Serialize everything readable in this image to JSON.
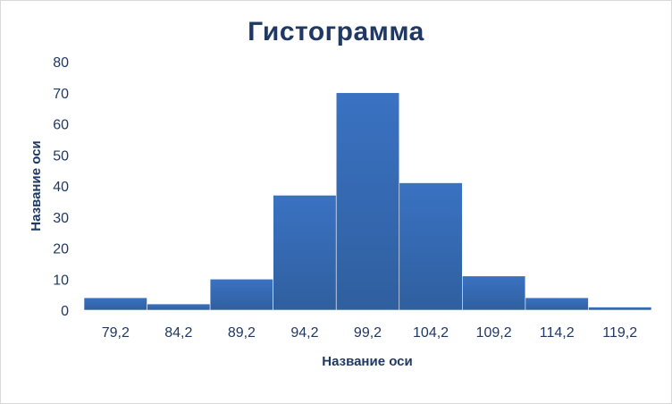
{
  "chart_data": {
    "type": "bar",
    "title": "Гистограмма",
    "xlabel": "Название оси",
    "ylabel": "Название оси",
    "categories": [
      "79,2",
      "84,2",
      "89,2",
      "94,2",
      "99,2",
      "104,2",
      "109,2",
      "114,2",
      "119,2"
    ],
    "values": [
      4,
      2,
      10,
      37,
      70,
      41,
      11,
      4,
      1
    ],
    "ylim": [
      0,
      80
    ],
    "yticks": [
      "0",
      "10",
      "20",
      "30",
      "40",
      "50",
      "60",
      "70",
      "80"
    ],
    "grid": false,
    "legend": "none",
    "bar_color": "#3a72c2",
    "bar_color_dark": "#2f5f9f"
  }
}
